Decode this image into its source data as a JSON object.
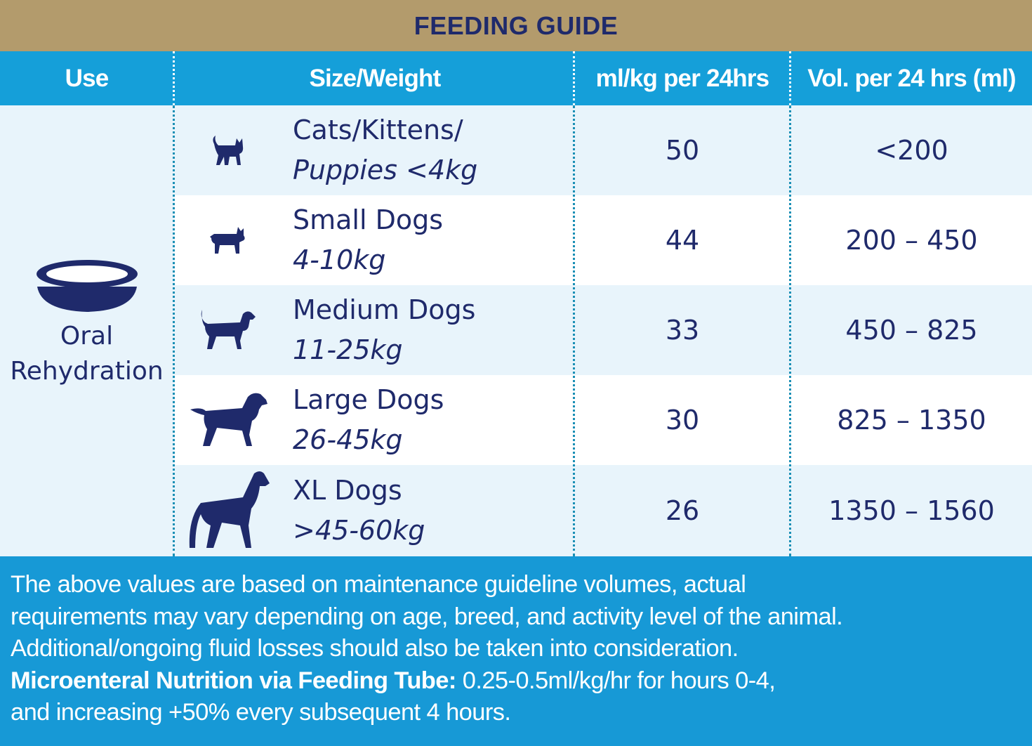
{
  "title": "FEEDING GUIDE",
  "headers": {
    "use": "Use",
    "size": "Size/Weight",
    "mlkg": "ml/kg per 24hrs",
    "vol": "Vol. per 24 hrs (ml)"
  },
  "use": {
    "line1": "Oral",
    "line2": "Rehydration",
    "icon": "bowl-icon"
  },
  "rows": [
    {
      "name": "Cats/Kittens/",
      "weight": "Puppies <4kg",
      "mlkg": "50",
      "vol": "<200",
      "icon": "cat-icon"
    },
    {
      "name": "Small Dogs",
      "weight": "4-10kg",
      "mlkg": "44",
      "vol": "200 – 450",
      "icon": "small-dog-icon"
    },
    {
      "name": "Medium Dogs",
      "weight": "11-25kg",
      "mlkg": "33",
      "vol": "450 – 825",
      "icon": "medium-dog-icon"
    },
    {
      "name": "Large Dogs",
      "weight": "26-45kg",
      "mlkg": "30",
      "vol": "825 – 1350",
      "icon": "large-dog-icon"
    },
    {
      "name": "XL Dogs",
      "weight": ">45-60kg",
      "mlkg": "26",
      "vol": "1350 – 1560",
      "icon": "xl-dog-icon"
    }
  ],
  "footer": {
    "line1": "The above values are based on maintenance guideline volumes, actual",
    "line2": "requirements may vary depending on age, breed, and activity level of the animal.",
    "line3": "Additional/ongoing fluid losses should also be taken into consideration.",
    "line4_bold": "Microenteral Nutrition via Feeding Tube:",
    "line4_rest": " 0.25-0.5ml/kg/hr for hours 0-4,",
    "line5": "and increasing +50% every subsequent 4 hours."
  },
  "colors": {
    "navy": "#1f2a6b",
    "header_blue": "#159fd9",
    "title_gold": "#b39b6c",
    "row_tint": "#e8f4fb"
  }
}
